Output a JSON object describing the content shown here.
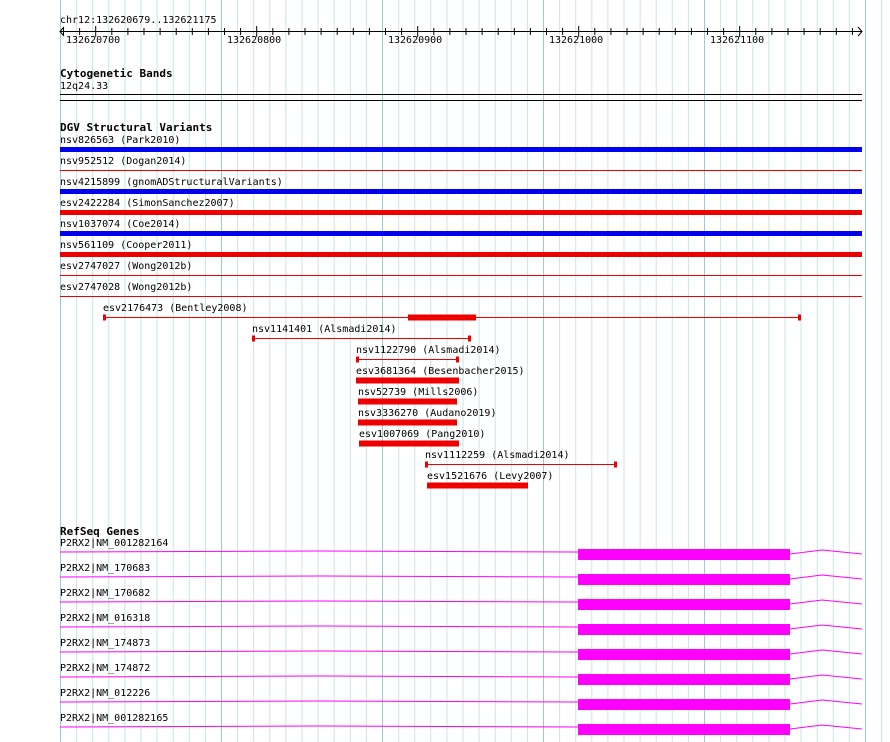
{
  "ruler": {
    "location": "chr12:132620679..132621175",
    "ticks": [
      "132620700",
      "132620800",
      "132620900",
      "132621000",
      "132621100"
    ]
  },
  "tracks": {
    "cytoband": {
      "title": "Cytogenetic Bands",
      "band": "12q24.33"
    },
    "dgv": {
      "title": "DGV Structural Variants",
      "full_rows": [
        {
          "label": "nsv826563 (Park2010)",
          "color": "#0000ee",
          "kind": "thick"
        },
        {
          "label": "nsv952512 (Dogan2014)",
          "color": "#ee0000",
          "kind": "thin"
        },
        {
          "label": "nsv4215899 (gnomADStructuralVariants)",
          "color": "#0000ee",
          "kind": "thick"
        },
        {
          "label": "esv2422284 (SimonSanchez2007)",
          "color": "#ee0000",
          "kind": "thick"
        },
        {
          "label": "nsv1037074 (Coe2014)",
          "color": "#0000ee",
          "kind": "thick"
        },
        {
          "label": "nsv561109 (Cooper2011)",
          "color": "#ee0000",
          "kind": "thick"
        },
        {
          "label": "esv2747027 (Wong2012b)",
          "color": "#ee0000",
          "kind": "thin"
        },
        {
          "label": "esv2747028 (Wong2012b)",
          "color": "#ee0000",
          "kind": "thin"
        }
      ],
      "features": [
        {
          "label": "esv2176473 (Bentley2008)",
          "color": "#ee0000"
        },
        {
          "label": "nsv1141401 (Alsmadi2014)",
          "color": "#ee0000"
        },
        {
          "label": "nsv1122790 (Alsmadi2014)",
          "color": "#ee0000"
        },
        {
          "label": "esv3681364 (Besenbacher2015)",
          "color": "#ee0000"
        },
        {
          "label": "nsv52739 (Mills2006)",
          "color": "#ee0000"
        },
        {
          "label": "nsv3336270 (Audano2019)",
          "color": "#ee0000"
        },
        {
          "label": "esv1007069 (Pang2010)",
          "color": "#ee0000"
        },
        {
          "label": "nsv1112259 (Alsmadi2014)",
          "color": "#ee0000"
        },
        {
          "label": "esv1521676 (Levy2007)",
          "color": "#ee0000"
        }
      ]
    },
    "refseq": {
      "title": "RefSeq Genes",
      "color": "#ff00ff",
      "genes": [
        "P2RX2|NM_001282164",
        "P2RX2|NM_170683",
        "P2RX2|NM_170682",
        "P2RX2|NM_016318",
        "P2RX2|NM_174873",
        "P2RX2|NM_174872",
        "P2RX2|NM_012226",
        "P2RX2|NM_001282165"
      ]
    }
  },
  "colors": {
    "grid": "#c8e4ec",
    "grid_major": "#9ccbd8",
    "red": "#ee0000",
    "blue": "#0000ee",
    "magenta": "#ff00ff"
  }
}
